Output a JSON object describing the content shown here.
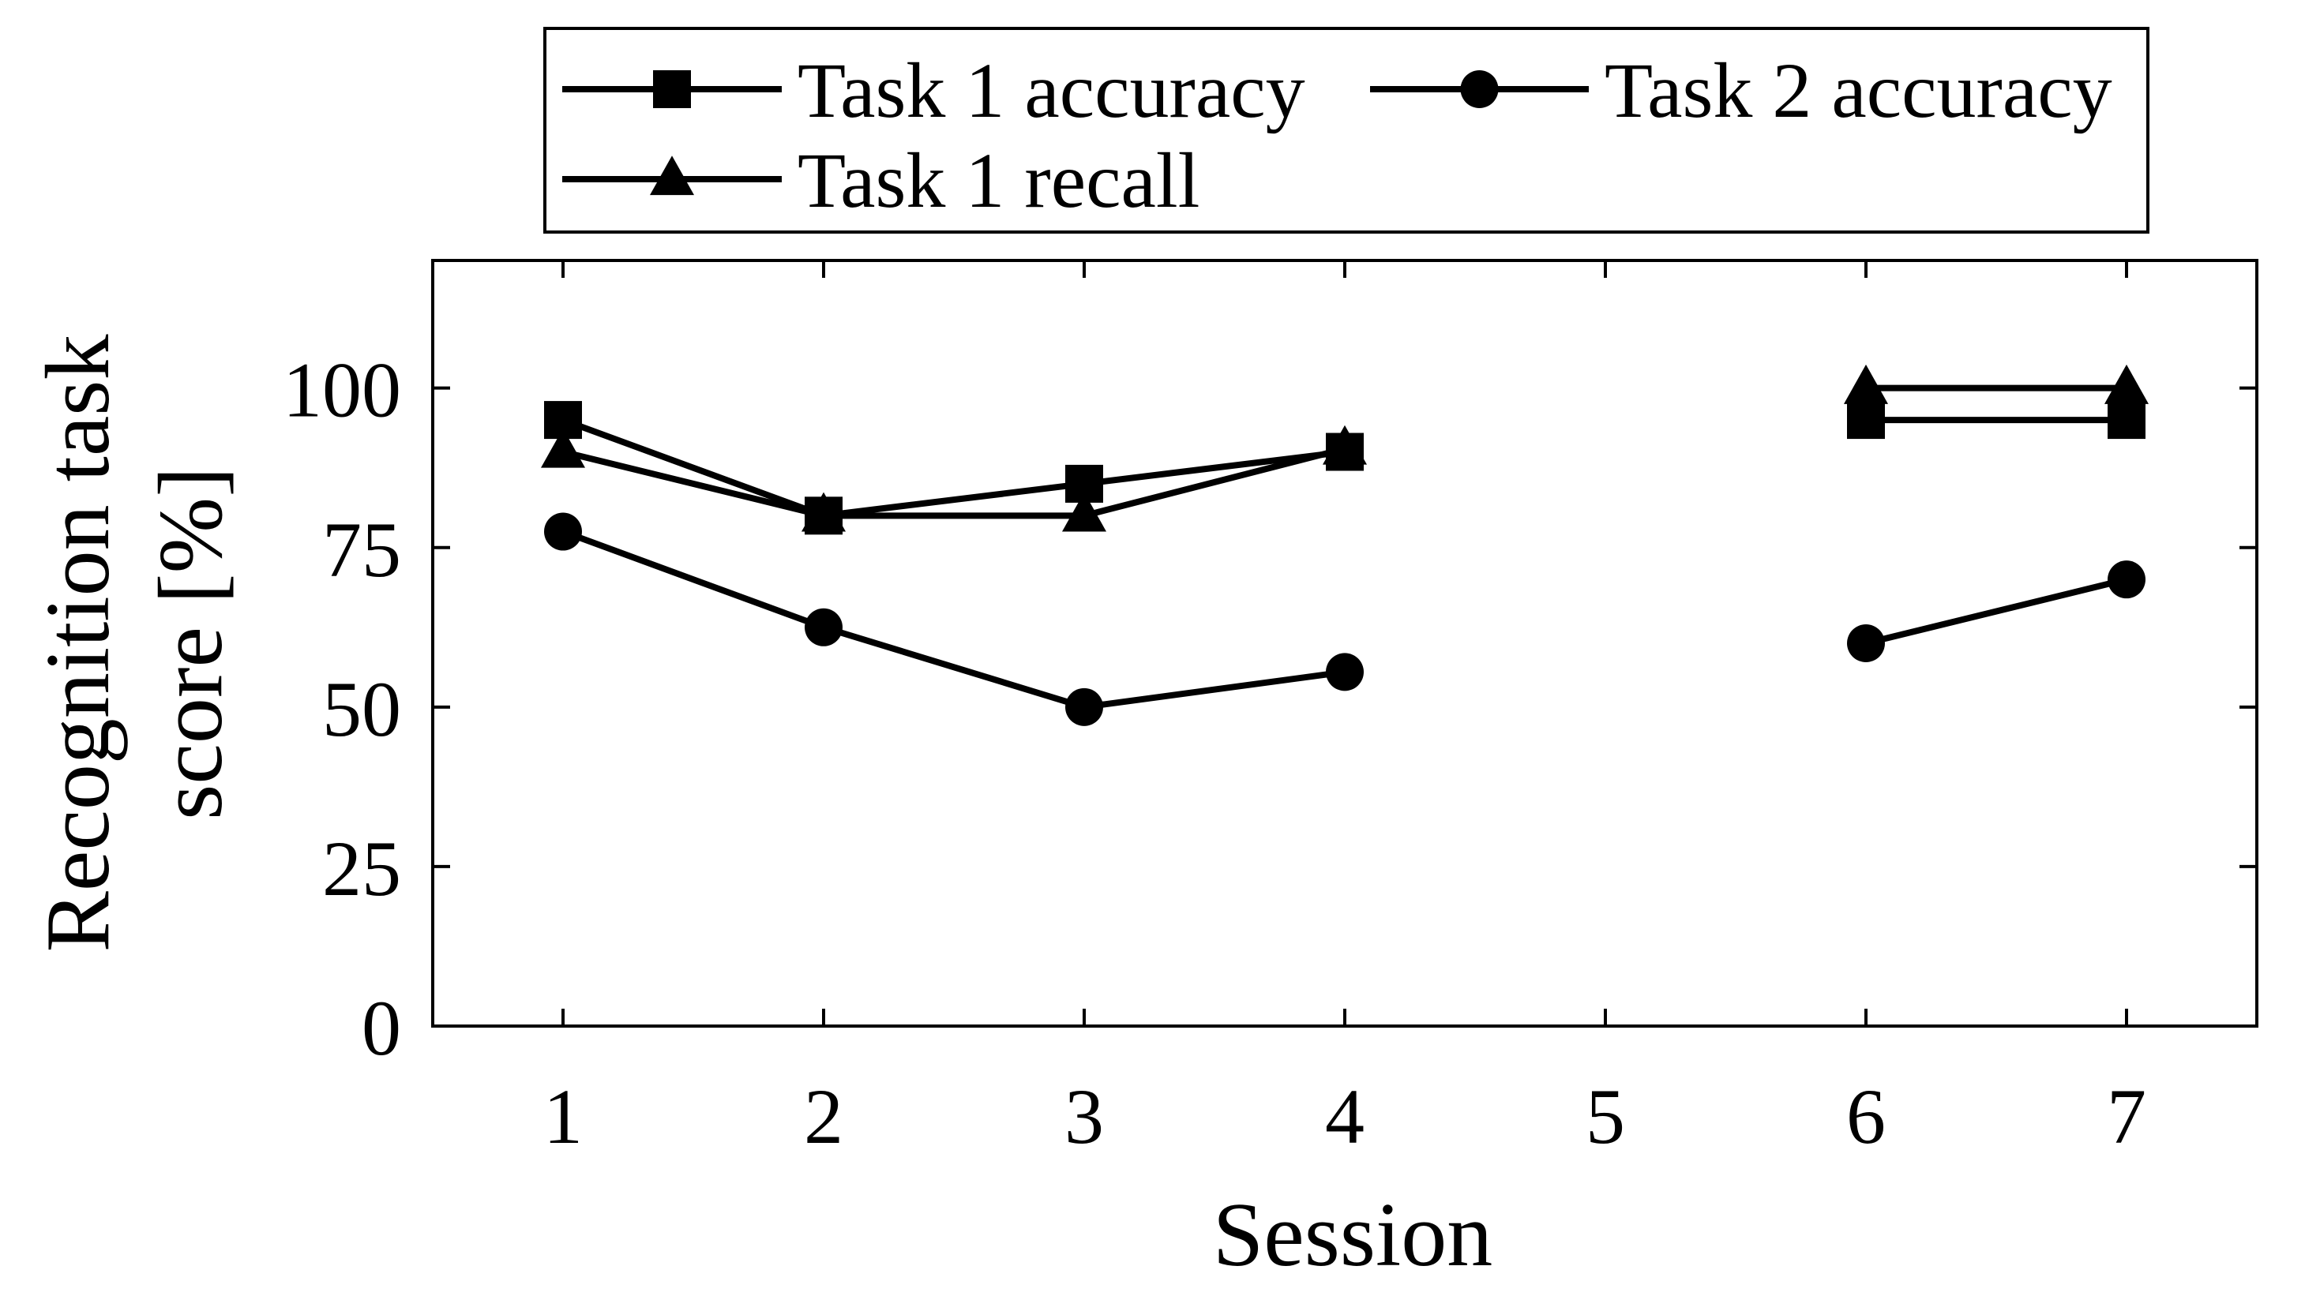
{
  "chart_data": {
    "type": "line",
    "title": "",
    "xlabel": "Session",
    "ylabel_lines": [
      "Recognition task",
      "score [%]"
    ],
    "x": [
      1,
      2,
      3,
      4,
      5,
      6,
      7
    ],
    "xlim": [
      0.5,
      7.5
    ],
    "ylim": [
      0,
      120
    ],
    "yticks": [
      0,
      25,
      50,
      75,
      100
    ],
    "xticks": [
      1,
      2,
      3,
      4,
      5,
      6,
      7
    ],
    "grid": false,
    "legend_position": "top-center",
    "series": [
      {
        "name": "Task 1 accuracy",
        "marker": "square",
        "values": [
          95,
          80,
          85,
          90,
          null,
          95,
          95
        ]
      },
      {
        "name": "Task 2 accuracy",
        "marker": "circle",
        "values": [
          77.5,
          62.5,
          50,
          55.5,
          null,
          60,
          70
        ]
      },
      {
        "name": "Task 1 recall",
        "marker": "triangle",
        "values": [
          90,
          80,
          80,
          90.5,
          null,
          100,
          100
        ]
      }
    ],
    "colors": {
      "line": "#000000",
      "marker": "#000000",
      "axes": "#000000"
    }
  }
}
